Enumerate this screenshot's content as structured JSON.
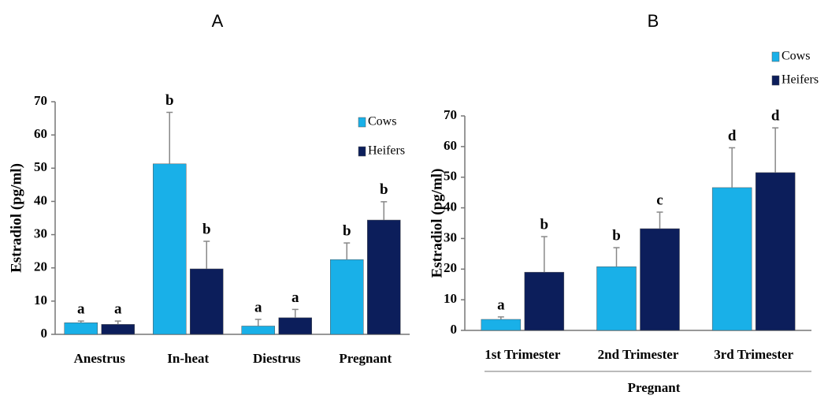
{
  "chart_data": [
    {
      "type": "bar",
      "title": "A",
      "ylabel": "Estradiol (pg/ml)",
      "categories": [
        "Anestrus",
        "In-heat",
        "Diestrus",
        "Pregnant"
      ],
      "series": [
        {
          "name": "Cows",
          "color": "#19b0e8",
          "values": [
            3.5,
            51.3,
            2.5,
            22.5
          ],
          "errors": [
            0.5,
            15.5,
            2,
            5
          ],
          "letters": [
            "a",
            "b",
            "a",
            "b"
          ]
        },
        {
          "name": "Heifers",
          "color": "#0c1e5b",
          "values": [
            3,
            19.7,
            5,
            34.4
          ],
          "errors": [
            1,
            8.3,
            2.5,
            5.5
          ],
          "letters": [
            "a",
            "b",
            "a",
            "b"
          ]
        }
      ],
      "ylim": [
        0,
        70
      ],
      "yticks": [
        0,
        10,
        20,
        30,
        40,
        50,
        60,
        70
      ],
      "grid": false,
      "legend": "upper right"
    },
    {
      "type": "bar",
      "title": "B",
      "ylabel": "Estradiol (pg/ml)",
      "xlabel": "Pregnant",
      "categories": [
        "1st Trimester",
        "2nd Trimester",
        "3rd Trimester"
      ],
      "series": [
        {
          "name": "Cows",
          "color": "#19b0e8",
          "values": [
            3.6,
            20.8,
            46.6
          ],
          "errors": [
            0.8,
            6.2,
            13
          ],
          "letters": [
            "a",
            "b",
            "d"
          ]
        },
        {
          "name": "Heifers",
          "color": "#0c1e5b",
          "values": [
            19,
            33.2,
            51.5
          ],
          "errors": [
            11.6,
            5.4,
            14.6
          ],
          "letters": [
            "b",
            "c",
            "d"
          ]
        }
      ],
      "ylim": [
        0,
        70
      ],
      "yticks": [
        0,
        10,
        20,
        30,
        40,
        50,
        60,
        70
      ],
      "grid": false,
      "legend": "outside top right"
    }
  ]
}
